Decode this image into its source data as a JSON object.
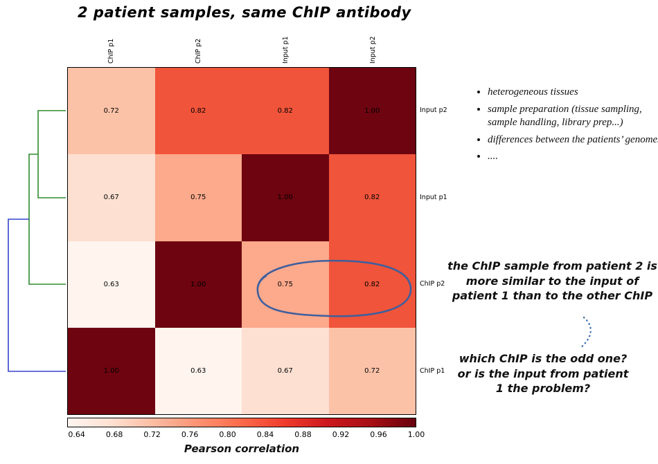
{
  "title": "2 patient samples, same ChIP antibody",
  "chart_data": {
    "type": "heatmap",
    "columns": [
      "ChIP p1",
      "ChIP p2",
      "Input p1",
      "Input p2"
    ],
    "rows": [
      "Input p2",
      "Input p1",
      "ChIP p2",
      "ChIP p1"
    ],
    "values": [
      [
        0.72,
        0.82,
        0.82,
        1.0
      ],
      [
        0.67,
        0.75,
        1.0,
        0.82
      ],
      [
        0.63,
        1.0,
        0.75,
        0.82
      ],
      [
        1.0,
        0.63,
        0.67,
        0.72
      ]
    ],
    "value_colors": {
      "0.63": "#fff4ee",
      "0.67": "#fde0d1",
      "0.72": "#fcc2a8",
      "0.75": "#fca98c",
      "0.82": "#f0543a",
      "1.00": "#6d0410"
    },
    "colorbar": {
      "vmin": 0.63,
      "vmax": 1.0,
      "ticks": [
        0.64,
        0.68,
        0.72,
        0.76,
        0.8,
        0.84,
        0.88,
        0.92,
        0.96,
        1.0
      ],
      "label": "Pearson correlation",
      "gradient": [
        "#fff5f0",
        "#fee0d2",
        "#fcbba1",
        "#fc9272",
        "#fb6a4a",
        "#ef3b2c",
        "#cb181d",
        "#a50f15",
        "#67000d"
      ]
    }
  },
  "dendrogram": {
    "green_color": "#2e8b2e",
    "blue_color": "#3344cc"
  },
  "highlight": {
    "ellipse_color": "#3e5f9e",
    "connector_color": "#3e6fae"
  },
  "annotations": {
    "bullets": [
      "heterogeneous tissues",
      "sample preparation (tissue sampling, sample handling, library prep...)",
      "differences between the patients’ genomes",
      "...."
    ],
    "note1": "the ChIP sample from patient 2 is more similar to the input of patient 1 than to the other ChIP",
    "note2": "which ChIP is the odd one? or is the input from patient 1 the problem?"
  }
}
